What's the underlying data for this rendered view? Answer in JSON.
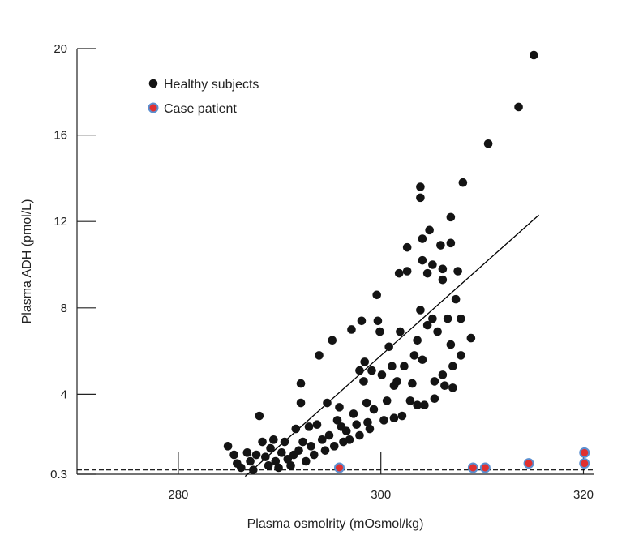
{
  "chart_data": {
    "type": "scatter",
    "title": "",
    "xlabel": "Plasma osmolrity (mOsmol/kg)",
    "ylabel": "Plasma ADH (pmol/L)",
    "xlim": [
      270,
      321
    ],
    "ylim": [
      0.3,
      20
    ],
    "x_ticks": [
      280,
      300,
      320
    ],
    "y_ticks": [
      0.3,
      4,
      8,
      12,
      16,
      20
    ],
    "x_tick_labels": [
      "280",
      "300",
      "320"
    ],
    "y_tick_labels": [
      "0.3",
      "4",
      "8",
      "12",
      "16",
      "20"
    ],
    "grid": false,
    "legend_position": "top-left",
    "colors": {
      "healthy": "#141414",
      "case_fill": "#e03030",
      "case_stroke": "#5b8fd0",
      "line": "#000000"
    },
    "series": [
      {
        "name": "Healthy subjects",
        "marker": "black-dot",
        "points": [
          [
            284.9,
            1.6
          ],
          [
            285.5,
            1.2
          ],
          [
            285.8,
            0.8
          ],
          [
            286.2,
            0.6
          ],
          [
            286.8,
            1.3
          ],
          [
            287.1,
            0.9
          ],
          [
            287.4,
            0.5
          ],
          [
            287.7,
            1.2
          ],
          [
            288,
            3
          ],
          [
            288.3,
            1.8
          ],
          [
            288.6,
            1.1
          ],
          [
            288.9,
            0.7
          ],
          [
            289.1,
            1.5
          ],
          [
            289.4,
            1.9
          ],
          [
            289.6,
            0.9
          ],
          [
            289.9,
            0.6
          ],
          [
            290.2,
            1.3
          ],
          [
            290.5,
            1.8
          ],
          [
            290.8,
            1
          ],
          [
            291.1,
            0.7
          ],
          [
            291.4,
            1.2
          ],
          [
            291.6,
            2.4
          ],
          [
            291.9,
            1.4
          ],
          [
            292.1,
            4.5
          ],
          [
            292.1,
            3.6
          ],
          [
            292.3,
            1.8
          ],
          [
            292.6,
            0.9
          ],
          [
            292.9,
            2.5
          ],
          [
            293.1,
            1.6
          ],
          [
            293.4,
            1.2
          ],
          [
            293.7,
            2.6
          ],
          [
            293.9,
            5.8
          ],
          [
            294.2,
            1.9
          ],
          [
            294.5,
            1.4
          ],
          [
            294.7,
            3.6
          ],
          [
            294.9,
            2.1
          ],
          [
            295.2,
            6.5
          ],
          [
            295.4,
            1.6
          ],
          [
            295.7,
            2.8
          ],
          [
            295.9,
            3.4
          ],
          [
            296.1,
            2.5
          ],
          [
            296.3,
            1.8
          ],
          [
            296.6,
            2.3
          ],
          [
            296.9,
            1.9
          ],
          [
            297.1,
            7
          ],
          [
            297.3,
            3.1
          ],
          [
            297.6,
            2.6
          ],
          [
            297.9,
            5.1
          ],
          [
            297.9,
            2.1
          ],
          [
            298.1,
            7.4
          ],
          [
            298.3,
            4.6
          ],
          [
            298.4,
            5.5
          ],
          [
            298.6,
            3.6
          ],
          [
            298.7,
            2.7
          ],
          [
            298.9,
            2.4
          ],
          [
            299.1,
            5.1
          ],
          [
            299.3,
            3.3
          ],
          [
            299.6,
            8.6
          ],
          [
            299.7,
            7.4
          ],
          [
            299.9,
            6.9
          ],
          [
            300.1,
            4.9
          ],
          [
            300.3,
            2.8
          ],
          [
            300.6,
            3.7
          ],
          [
            300.8,
            6.2
          ],
          [
            301.1,
            5.3
          ],
          [
            301.3,
            4.4
          ],
          [
            301.3,
            2.9
          ],
          [
            301.6,
            4.6
          ],
          [
            301.8,
            9.6
          ],
          [
            301.9,
            6.9
          ],
          [
            302.1,
            3
          ],
          [
            302.3,
            5.3
          ],
          [
            302.6,
            10.8
          ],
          [
            302.6,
            9.7
          ],
          [
            302.9,
            3.7
          ],
          [
            303.1,
            4.5
          ],
          [
            303.3,
            5.8
          ],
          [
            303.6,
            6.5
          ],
          [
            303.6,
            3.5
          ],
          [
            303.9,
            7.9
          ],
          [
            303.9,
            13.6
          ],
          [
            303.9,
            13.1
          ],
          [
            304.1,
            11.2
          ],
          [
            304.1,
            10.2
          ],
          [
            304.1,
            5.6
          ],
          [
            304.3,
            3.5
          ],
          [
            304.6,
            9.6
          ],
          [
            304.6,
            7.2
          ],
          [
            304.8,
            11.6
          ],
          [
            305.1,
            10
          ],
          [
            305.1,
            7.5
          ],
          [
            305.3,
            4.6
          ],
          [
            305.3,
            3.8
          ],
          [
            305.6,
            6.9
          ],
          [
            305.9,
            10.9
          ],
          [
            306.1,
            9.8
          ],
          [
            306.1,
            9.3
          ],
          [
            306.1,
            4.9
          ],
          [
            306.3,
            4.4
          ],
          [
            306.6,
            7.5
          ],
          [
            306.9,
            12.2
          ],
          [
            306.9,
            11
          ],
          [
            306.9,
            6.3
          ],
          [
            307.1,
            5.3
          ],
          [
            307.1,
            4.3
          ],
          [
            307.4,
            8.4
          ],
          [
            307.6,
            9.7
          ],
          [
            307.9,
            7.5
          ],
          [
            307.9,
            5.8
          ],
          [
            308.1,
            13.8
          ],
          [
            308.9,
            6.6
          ],
          [
            310.6,
            15.6
          ],
          [
            313.6,
            17.3
          ],
          [
            315.1,
            19.7
          ]
        ]
      },
      {
        "name": "Case patient",
        "marker": "red-dot-blue-ring",
        "points": [
          [
            295.9,
            0.6
          ],
          [
            309.1,
            0.6
          ],
          [
            310.3,
            0.6
          ],
          [
            314.6,
            0.8
          ],
          [
            320.1,
            0.8
          ],
          [
            320.1,
            1.3
          ]
        ]
      }
    ],
    "regression_line": [
      [
        286.6,
        0.2
      ],
      [
        315.6,
        12.3
      ]
    ],
    "reference_line": {
      "y": 0.5,
      "style": "dashed"
    }
  }
}
